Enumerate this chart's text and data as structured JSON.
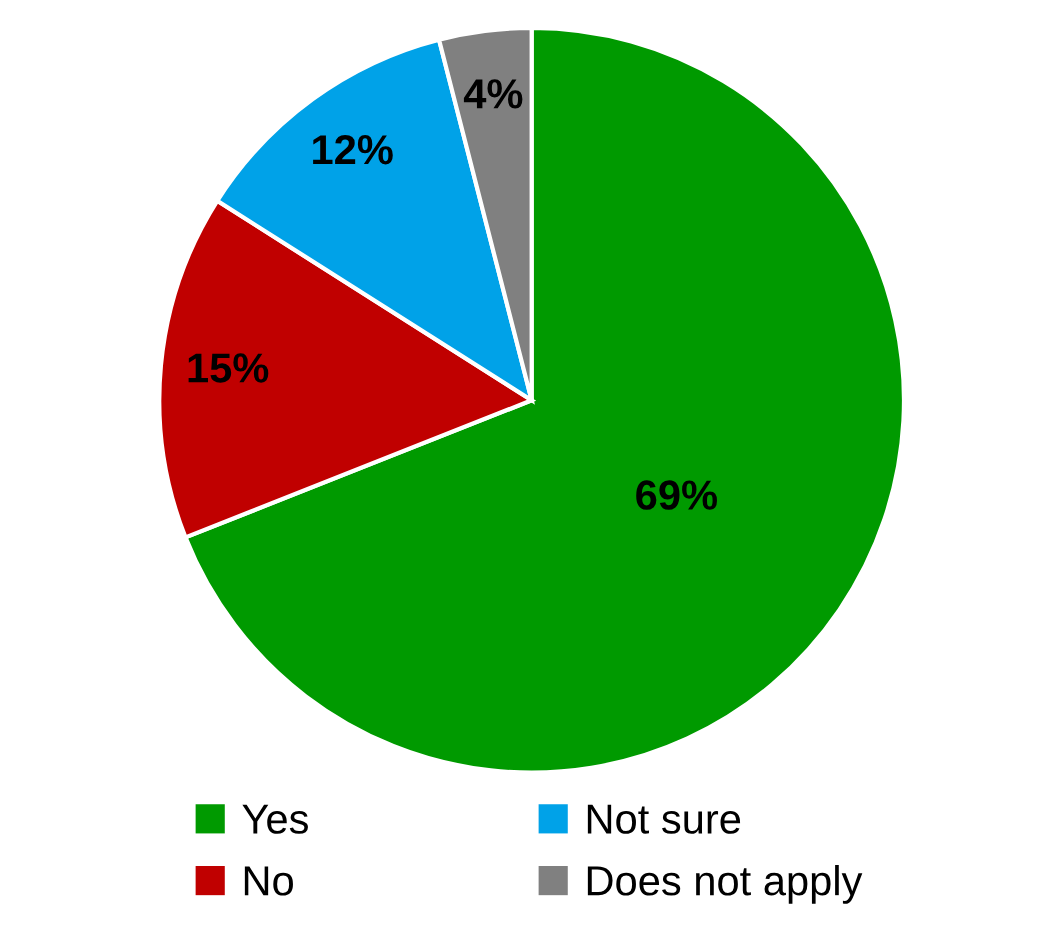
{
  "chart_data": {
    "type": "pie",
    "categories": [
      "Yes",
      "No",
      "Not sure",
      "Does not apply"
    ],
    "values": [
      69,
      15,
      12,
      4
    ],
    "colors": [
      "#009a00",
      "#c00000",
      "#00a2e8",
      "#808080"
    ],
    "value_labels": [
      "69%",
      "15%",
      "12%",
      "4%"
    ],
    "legend": "bottom"
  }
}
